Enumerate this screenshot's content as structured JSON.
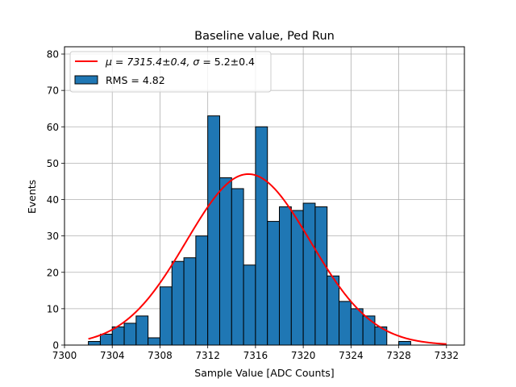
{
  "chart_data": {
    "type": "bar",
    "title": "Baseline value, Ped Run",
    "xlabel": "Sample Value [ADC Counts]",
    "ylabel": "Events",
    "xlim": [
      7300,
      7333.5
    ],
    "ylim": [
      0,
      82
    ],
    "xticks": [
      7300,
      7304,
      7308,
      7312,
      7316,
      7320,
      7324,
      7328,
      7332
    ],
    "yticks": [
      0,
      10,
      20,
      30,
      40,
      50,
      60,
      70,
      80
    ],
    "grid": true,
    "legend_position": "top-left",
    "histogram": {
      "name": "RMS = 4.82",
      "bin_edges": [
        7302,
        7303,
        7304,
        7305,
        7306,
        7307,
        7308,
        7309,
        7310,
        7311,
        7312,
        7313,
        7314,
        7315,
        7316,
        7317,
        7318,
        7319,
        7320,
        7321,
        7322,
        7323,
        7324,
        7325,
        7326,
        7327,
        7328,
        7329
      ],
      "counts": [
        1,
        3,
        5,
        6,
        8,
        2,
        16,
        23,
        24,
        30,
        63,
        46,
        43,
        22,
        60,
        34,
        38,
        37,
        39,
        38,
        19,
        12,
        10,
        8,
        5,
        0,
        1
      ],
      "color": "#1f77b4",
      "edgecolor": "#000000"
    },
    "fit": {
      "name": "$\\mu = 7315.4{\\pm}0.4$, $\\sigma = 5.2{\\pm}0.4$",
      "mu": 7315.4,
      "sigma": 5.2,
      "amplitude": 47,
      "x_range": [
        7302,
        7332
      ],
      "color": "#ff0000"
    }
  },
  "legend": {
    "fit_prefix": "μ = 7315.4±0.4, ",
    "fit_sigma": "σ",
    "fit_suffix": " = 5.2±0.4",
    "hist_label": "RMS = 4.82"
  }
}
